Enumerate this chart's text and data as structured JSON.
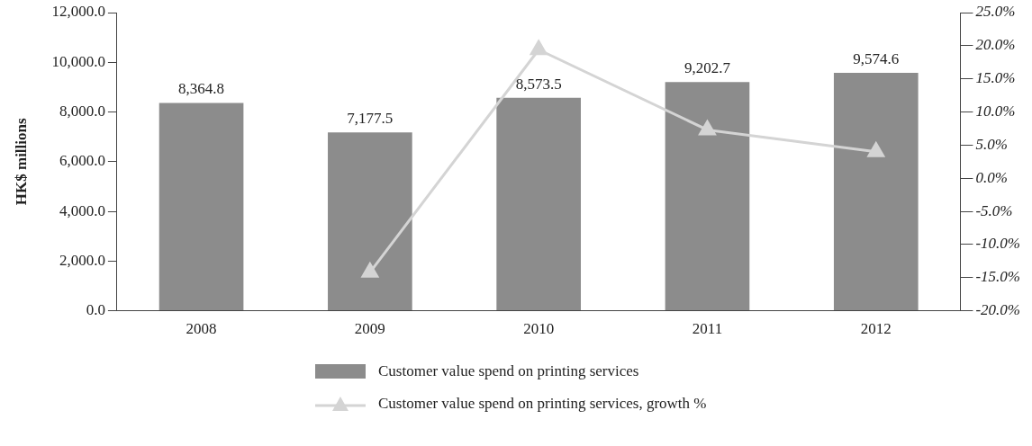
{
  "chart_data": {
    "type": "bar",
    "ylabel": "HK$ millions",
    "categories": [
      "2008",
      "2009",
      "2010",
      "2011",
      "2012"
    ],
    "series": [
      {
        "name": "Customer value spend on printing services",
        "color": "#8c8c8c",
        "values": [
          8364.8,
          7177.5,
          8573.5,
          9202.7,
          9574.6
        ],
        "value_labels": [
          "8,364.8",
          "7,177.5",
          "8,573.5",
          "9,202.7",
          "9,574.6"
        ]
      },
      {
        "name": "Customer value spend on printing services, growth %",
        "type": "line",
        "axis": "y2",
        "color": "#d4d4d4",
        "marker": "triangle",
        "values": [
          null,
          -14.2,
          19.4,
          7.3,
          4.0
        ]
      }
    ],
    "ylim": [
      0,
      12000
    ],
    "yticks": [
      {
        "value": 0,
        "label": "0.0"
      },
      {
        "value": 2000,
        "label": "2,000.0"
      },
      {
        "value": 4000,
        "label": "4,000.0"
      },
      {
        "value": 6000,
        "label": "6,000.0"
      },
      {
        "value": 8000,
        "label": "8,000.0"
      },
      {
        "value": 10000,
        "label": "10,000.0"
      },
      {
        "value": 12000,
        "label": "12,000.0"
      }
    ],
    "y2lim": [
      -20,
      25
    ],
    "y2ticks": [
      {
        "value": -20,
        "label": "-20.0%"
      },
      {
        "value": -15,
        "label": "-15.0%"
      },
      {
        "value": -10,
        "label": "-10.0%"
      },
      {
        "value": -5,
        "label": "-5.0%"
      },
      {
        "value": 0,
        "label": "0.0%"
      },
      {
        "value": 5,
        "label": "5.0%"
      },
      {
        "value": 10,
        "label": "10.0%"
      },
      {
        "value": 15,
        "label": "15.0%"
      },
      {
        "value": 20,
        "label": "20.0%"
      },
      {
        "value": 25,
        "label": "25.0%"
      }
    ],
    "grid": false,
    "legend": "bottom"
  }
}
